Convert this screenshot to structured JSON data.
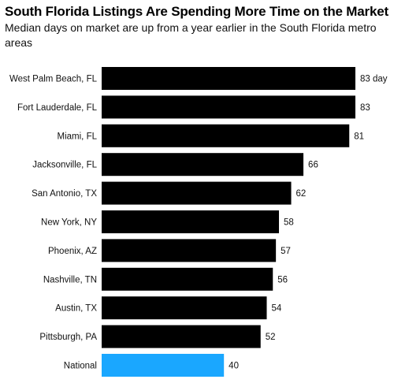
{
  "header": {
    "title": "South Florida Listings Are Spending More Time on the Market",
    "subtitle": "Median days on market are up from a year earlier in the South Florida metro areas"
  },
  "colors": {
    "bar": "#000000",
    "highlight": "#1aa7ff",
    "text": "#111111"
  },
  "chart_data": {
    "type": "bar",
    "orientation": "horizontal",
    "title": "South Florida Listings Are Spending More Time on the Market",
    "subtitle": "Median days on market are up from a year earlier in the South Florida metro areas",
    "categories": [
      "West Palm Beach, FL",
      "Fort Lauderdale, FL",
      "Miami, FL",
      "Jacksonville, FL",
      "San Antonio, TX",
      "New York, NY",
      "Phoenix, AZ",
      "Nashville, TN",
      "Austin, TX",
      "Pittsburgh, PA",
      "National"
    ],
    "values": [
      83,
      83,
      81,
      66,
      62,
      58,
      57,
      56,
      54,
      52,
      40
    ],
    "value_labels": [
      "83 day",
      "83",
      "81",
      "66",
      "62",
      "58",
      "57",
      "56",
      "54",
      "52",
      "40"
    ],
    "highlighted_category": "National",
    "xlim": [
      0,
      83
    ],
    "grid": false,
    "legend": "none"
  }
}
